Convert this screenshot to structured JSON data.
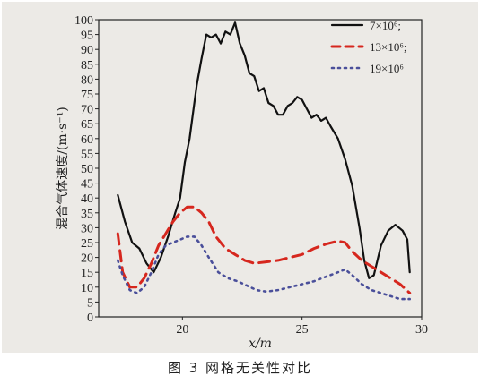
{
  "caption": "图 3   网格无关性对比",
  "chart_data": {
    "type": "line",
    "xlabel": "x/m",
    "ylabel": "混合气体速度/(m·s⁻¹)",
    "xlim": [
      16.5,
      30
    ],
    "ylim": [
      0,
      100
    ],
    "xticks": [
      20,
      25,
      30
    ],
    "yticks": [
      0,
      5,
      10,
      15,
      20,
      25,
      30,
      35,
      40,
      45,
      50,
      55,
      60,
      65,
      70,
      75,
      80,
      85,
      90,
      95,
      100
    ],
    "legend_position": "top-right",
    "grid": false,
    "series": [
      {
        "name": "7×10⁶;",
        "color": "#111111",
        "style": "solid",
        "points": [
          [
            17.3,
            41
          ],
          [
            17.6,
            32
          ],
          [
            17.9,
            25
          ],
          [
            18.2,
            23
          ],
          [
            18.5,
            18
          ],
          [
            18.8,
            15
          ],
          [
            19.1,
            20
          ],
          [
            19.4,
            27
          ],
          [
            19.7,
            35
          ],
          [
            19.9,
            40
          ],
          [
            20.1,
            52
          ],
          [
            20.3,
            60
          ],
          [
            20.6,
            78
          ],
          [
            20.8,
            87
          ],
          [
            21.0,
            95
          ],
          [
            21.2,
            94
          ],
          [
            21.4,
            95
          ],
          [
            21.6,
            92
          ],
          [
            21.8,
            96
          ],
          [
            22.0,
            95
          ],
          [
            22.2,
            99
          ],
          [
            22.4,
            92
          ],
          [
            22.6,
            88
          ],
          [
            22.8,
            82
          ],
          [
            23.0,
            81
          ],
          [
            23.2,
            76
          ],
          [
            23.4,
            77
          ],
          [
            23.6,
            72
          ],
          [
            23.8,
            71
          ],
          [
            24.0,
            68
          ],
          [
            24.2,
            68
          ],
          [
            24.4,
            71
          ],
          [
            24.6,
            72
          ],
          [
            24.8,
            74
          ],
          [
            25.0,
            73
          ],
          [
            25.2,
            70
          ],
          [
            25.4,
            67
          ],
          [
            25.6,
            68
          ],
          [
            25.8,
            66
          ],
          [
            26.0,
            67
          ],
          [
            26.2,
            64
          ],
          [
            26.5,
            60
          ],
          [
            26.8,
            53
          ],
          [
            27.1,
            44
          ],
          [
            27.4,
            30
          ],
          [
            27.6,
            19
          ],
          [
            27.8,
            13
          ],
          [
            28.0,
            14
          ],
          [
            28.3,
            24
          ],
          [
            28.6,
            29
          ],
          [
            28.9,
            31
          ],
          [
            29.2,
            29
          ],
          [
            29.4,
            26
          ],
          [
            29.5,
            15
          ]
        ]
      },
      {
        "name": "13×10⁶;",
        "color": "#d6271e",
        "style": "dashed",
        "points": [
          [
            17.3,
            28
          ],
          [
            17.5,
            15
          ],
          [
            17.8,
            10
          ],
          [
            18.1,
            10
          ],
          [
            18.4,
            13
          ],
          [
            18.7,
            18
          ],
          [
            19.0,
            24
          ],
          [
            19.3,
            28
          ],
          [
            19.6,
            32
          ],
          [
            19.9,
            35
          ],
          [
            20.2,
            37
          ],
          [
            20.5,
            37
          ],
          [
            20.8,
            35
          ],
          [
            21.1,
            32
          ],
          [
            21.4,
            27
          ],
          [
            21.8,
            23
          ],
          [
            22.2,
            21
          ],
          [
            22.6,
            19
          ],
          [
            23.0,
            18
          ],
          [
            23.5,
            18.5
          ],
          [
            24.0,
            19
          ],
          [
            24.5,
            20
          ],
          [
            25.0,
            21
          ],
          [
            25.5,
            23
          ],
          [
            26.0,
            24.5
          ],
          [
            26.5,
            25.5
          ],
          [
            26.8,
            25
          ],
          [
            27.1,
            22
          ],
          [
            27.5,
            19
          ],
          [
            27.9,
            17
          ],
          [
            28.3,
            15
          ],
          [
            28.7,
            13
          ],
          [
            29.1,
            11
          ],
          [
            29.5,
            8
          ]
        ]
      },
      {
        "name": "19×10⁶",
        "color": "#4a4f9a",
        "style": "dotted",
        "points": [
          [
            17.3,
            19
          ],
          [
            17.5,
            14
          ],
          [
            17.8,
            9
          ],
          [
            18.1,
            8
          ],
          [
            18.4,
            10
          ],
          [
            18.7,
            15
          ],
          [
            19.0,
            21
          ],
          [
            19.3,
            24
          ],
          [
            19.6,
            25
          ],
          [
            19.9,
            26
          ],
          [
            20.2,
            27
          ],
          [
            20.5,
            27
          ],
          [
            20.8,
            24
          ],
          [
            21.1,
            20
          ],
          [
            21.5,
            15
          ],
          [
            21.9,
            13
          ],
          [
            22.3,
            12
          ],
          [
            22.7,
            10.5
          ],
          [
            23.1,
            9
          ],
          [
            23.5,
            8.5
          ],
          [
            24.0,
            9
          ],
          [
            24.5,
            10
          ],
          [
            25.0,
            11
          ],
          [
            25.5,
            12
          ],
          [
            26.0,
            13.5
          ],
          [
            26.5,
            15
          ],
          [
            26.8,
            16
          ],
          [
            27.1,
            14
          ],
          [
            27.5,
            11
          ],
          [
            27.9,
            9
          ],
          [
            28.3,
            8
          ],
          [
            28.7,
            7
          ],
          [
            29.1,
            6
          ],
          [
            29.5,
            6
          ]
        ]
      }
    ]
  }
}
